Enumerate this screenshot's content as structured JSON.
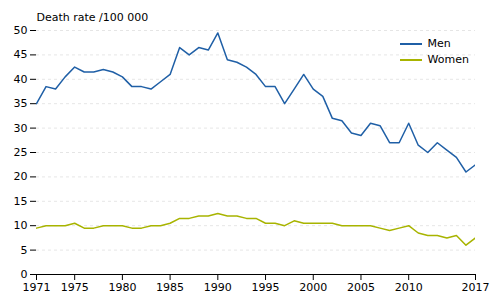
{
  "chart_data": {
    "type": "line",
    "ylabel": "Death rate /100 000",
    "x": [
      1971,
      1972,
      1973,
      1974,
      1975,
      1976,
      1977,
      1978,
      1979,
      1980,
      1981,
      1982,
      1983,
      1984,
      1985,
      1986,
      1987,
      1988,
      1989,
      1990,
      1991,
      1992,
      1993,
      1994,
      1995,
      1996,
      1997,
      1998,
      1999,
      2000,
      2001,
      2002,
      2003,
      2004,
      2005,
      2006,
      2007,
      2008,
      2009,
      2010,
      2011,
      2012,
      2013,
      2014,
      2015,
      2016,
      2017
    ],
    "series": [
      {
        "name": "Men",
        "color": "#1f5fa6",
        "values": [
          35.0,
          38.5,
          38.0,
          40.5,
          42.5,
          41.5,
          41.5,
          42.0,
          41.5,
          40.5,
          38.5,
          38.5,
          38.0,
          39.5,
          41.0,
          46.5,
          45.0,
          46.5,
          46.0,
          49.5,
          44.0,
          43.5,
          42.5,
          41.0,
          38.5,
          38.5,
          35.0,
          38.0,
          41.0,
          38.0,
          36.5,
          32.0,
          31.5,
          29.0,
          28.5,
          31.0,
          30.5,
          27.0,
          27.0,
          31.0,
          26.5,
          25.0,
          27.0,
          25.5,
          24.0,
          21.0,
          22.5
        ]
      },
      {
        "name": "Women",
        "color": "#a8b400",
        "values": [
          9.5,
          10.0,
          10.0,
          10.0,
          10.5,
          9.5,
          9.5,
          10.0,
          10.0,
          10.0,
          9.5,
          9.5,
          10.0,
          10.0,
          10.5,
          11.5,
          11.5,
          12.0,
          12.0,
          12.5,
          12.0,
          12.0,
          11.5,
          11.5,
          10.5,
          10.5,
          10.0,
          11.0,
          10.5,
          10.5,
          10.5,
          10.5,
          10.0,
          10.0,
          10.0,
          10.0,
          9.5,
          9.0,
          9.5,
          10.0,
          8.5,
          8.0,
          8.0,
          7.5,
          8.0,
          6.0,
          7.5
        ]
      }
    ],
    "xlim": [
      1971,
      2017
    ],
    "xticks": [
      1971,
      1975,
      1980,
      1985,
      1990,
      1995,
      2000,
      2005,
      2010,
      2017
    ],
    "ylim": [
      0,
      50
    ],
    "yticks": [
      0,
      5,
      10,
      15,
      20,
      25,
      30,
      35,
      40,
      45,
      50
    ],
    "grid": "y",
    "legend": "upper right"
  }
}
